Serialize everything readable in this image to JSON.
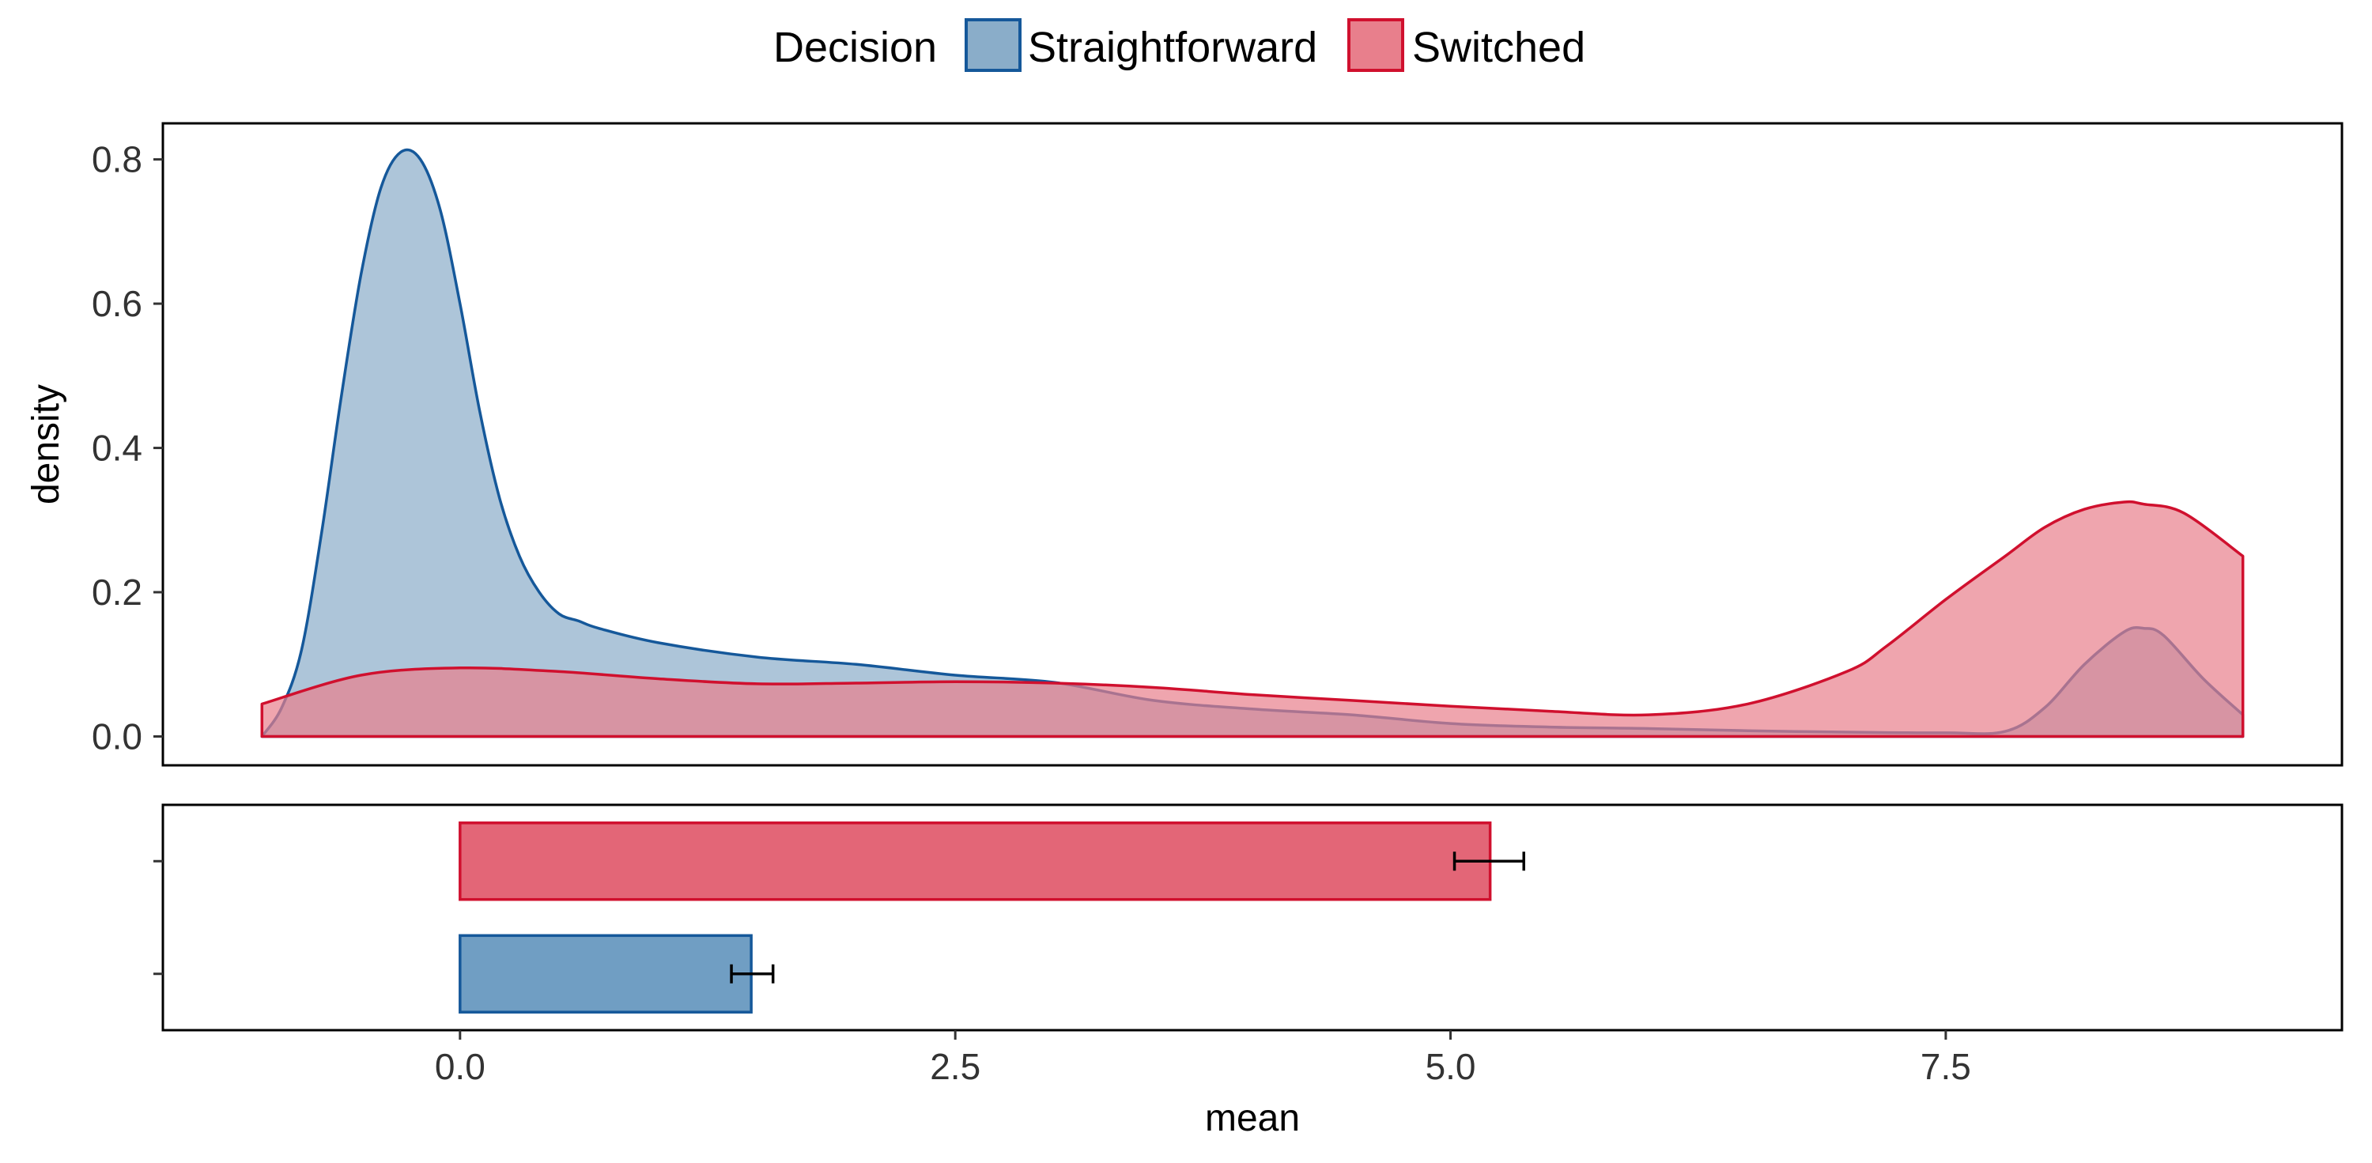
{
  "chart_data": {
    "type": "density+bar",
    "legend": {
      "title": "Decision",
      "placement": "top",
      "entries": [
        {
          "name": "Straightforward",
          "fill": "#8AADC9",
          "stroke": "#15589A"
        },
        {
          "name": "Switched",
          "fill": "#E87F8C",
          "stroke": "#D0102E"
        }
      ]
    },
    "x_axis": {
      "label": "mean",
      "range": [
        -1.5,
        9.5
      ],
      "ticks": [
        0.0,
        2.5,
        5.0,
        7.5
      ],
      "tick_labels": [
        "0.0",
        "2.5",
        "5.0",
        "7.5"
      ]
    },
    "density_panel": {
      "ylabel": "density",
      "ylim": [
        -0.04,
        0.85
      ],
      "ticks": [
        0.0,
        0.2,
        0.4,
        0.6,
        0.8
      ],
      "tick_labels": [
        "0.0",
        "0.2",
        "0.4",
        "0.6",
        "0.8"
      ],
      "series": [
        {
          "name": "Straightforward",
          "fill": "#8AADC9",
          "stroke": "#15589A",
          "x": [
            -1.0,
            -0.9,
            -0.8,
            -0.7,
            -0.6,
            -0.5,
            -0.4,
            -0.3,
            -0.2,
            -0.1,
            0.0,
            0.1,
            0.2,
            0.3,
            0.4,
            0.5,
            0.6,
            0.7,
            1.0,
            1.5,
            2.0,
            2.5,
            3.0,
            3.5,
            4.0,
            4.5,
            5.0,
            5.5,
            6.0,
            6.5,
            7.0,
            7.5,
            7.8,
            8.0,
            8.2,
            8.4,
            8.5,
            8.6,
            8.8,
            9.0
          ],
          "y": [
            0.0,
            0.04,
            0.12,
            0.28,
            0.47,
            0.64,
            0.76,
            0.81,
            0.8,
            0.73,
            0.6,
            0.45,
            0.33,
            0.25,
            0.2,
            0.17,
            0.16,
            0.15,
            0.13,
            0.11,
            0.1,
            0.085,
            0.075,
            0.05,
            0.038,
            0.03,
            0.018,
            0.013,
            0.011,
            0.008,
            0.006,
            0.005,
            0.007,
            0.04,
            0.1,
            0.145,
            0.15,
            0.14,
            0.08,
            0.03
          ]
        },
        {
          "name": "Switched",
          "fill": "#E87F8C",
          "stroke": "#D0102E",
          "x": [
            -1.0,
            -0.5,
            0.0,
            0.5,
            1.0,
            1.5,
            2.0,
            2.5,
            3.0,
            3.5,
            4.0,
            4.5,
            5.0,
            5.5,
            6.0,
            6.5,
            7.0,
            7.2,
            7.5,
            7.8,
            8.0,
            8.2,
            8.4,
            8.5,
            8.7,
            9.0
          ],
          "y": [
            0.045,
            0.085,
            0.095,
            0.09,
            0.08,
            0.073,
            0.074,
            0.076,
            0.074,
            0.068,
            0.058,
            0.05,
            0.042,
            0.035,
            0.03,
            0.045,
            0.09,
            0.125,
            0.19,
            0.25,
            0.29,
            0.315,
            0.325,
            0.322,
            0.31,
            0.25
          ]
        }
      ]
    },
    "bar_panel": {
      "orientation": "horizontal",
      "bars": [
        {
          "name": "Switched",
          "value": 5.2,
          "error_low": 5.02,
          "error_high": 5.37,
          "fill": "#E36677",
          "stroke": "#D0102E"
        },
        {
          "name": "Straightforward",
          "value": 1.47,
          "error_low": 1.37,
          "error_high": 1.58,
          "fill": "#709EC3",
          "stroke": "#15589A"
        }
      ]
    }
  }
}
